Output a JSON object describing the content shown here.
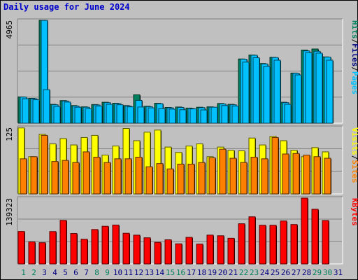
{
  "title": "Daily usage for June 2024",
  "colors": {
    "hits": "#00805c",
    "files": "#00c0ff",
    "pages": "#00c0ff",
    "visits": "#ffff00",
    "sites": "#ff8000",
    "kbytes": "#ff0000",
    "weekend_day": "#00805c",
    "weekday": "#000080",
    "panel": "#c0c0c0",
    "grid": "#808080"
  },
  "chart_data": [
    {
      "type": "bar",
      "panel": "hits-files-pages",
      "categories": [
        "1",
        "2",
        "3",
        "4",
        "5",
        "6",
        "7",
        "8",
        "9",
        "10",
        "11",
        "12",
        "13",
        "14",
        "15",
        "16",
        "17",
        "18",
        "19",
        "20",
        "21",
        "22",
        "23",
        "24",
        "25",
        "26",
        "27",
        "28",
        "29",
        "30",
        "31"
      ],
      "ymax_label": "4965",
      "ymax": 4965,
      "right_label": [
        "Pages",
        "/",
        "Files",
        "/",
        "Hits"
      ],
      "series": [
        {
          "name": "Hits",
          "values": [
            1270,
            1200,
            4965,
            910,
            1090,
            850,
            790,
            900,
            1010,
            960,
            850,
            1370,
            820,
            960,
            760,
            780,
            730,
            770,
            790,
            950,
            910,
            3100,
            3290,
            2880,
            3180,
            1010,
            2420,
            3530,
            3580,
            3200,
            0
          ]
        },
        {
          "name": "Files",
          "values": [
            1260,
            1180,
            4960,
            890,
            1070,
            830,
            770,
            880,
            990,
            940,
            830,
            1100,
            800,
            940,
            740,
            760,
            710,
            750,
            770,
            930,
            890,
            3090,
            3280,
            2860,
            3170,
            990,
            2410,
            3490,
            3470,
            3190,
            0
          ]
        },
        {
          "name": "Pages",
          "values": [
            1180,
            1130,
            1620,
            810,
            1020,
            770,
            700,
            830,
            910,
            890,
            790,
            780,
            740,
            700,
            680,
            650,
            690,
            640,
            770,
            850,
            830,
            2950,
            3160,
            2740,
            3040,
            910,
            2330,
            3400,
            3380,
            3040,
            0
          ]
        }
      ]
    },
    {
      "type": "bar",
      "panel": "visits-sites",
      "categories": [
        "1",
        "2",
        "3",
        "4",
        "5",
        "6",
        "7",
        "8",
        "9",
        "10",
        "11",
        "12",
        "13",
        "14",
        "15",
        "16",
        "17",
        "18",
        "19",
        "20",
        "21",
        "22",
        "23",
        "24",
        "25",
        "26",
        "27",
        "28",
        "29",
        "30",
        "31"
      ],
      "ymax_label": "125",
      "ymax": 125,
      "right_label": [
        "Sites",
        "/",
        "Visits"
      ],
      "series": [
        {
          "name": "Visits",
          "values": [
            124,
            70,
            112,
            94,
            104,
            92,
            106,
            110,
            73,
            90,
            123,
            100,
            116,
            120,
            88,
            78,
            90,
            94,
            70,
            88,
            82,
            81,
            105,
            92,
            108,
            100,
            82,
            70,
            87,
            79,
            0
          ]
        },
        {
          "name": "Sites",
          "values": [
            66,
            70,
            110,
            61,
            63,
            59,
            79,
            69,
            59,
            66,
            66,
            69,
            51,
            57,
            47,
            56,
            56,
            59,
            68,
            84,
            67,
            59,
            69,
            66,
            106,
            75,
            76,
            73,
            70,
            67,
            0
          ]
        }
      ]
    },
    {
      "type": "bar",
      "panel": "kbytes",
      "categories": [
        "1",
        "2",
        "3",
        "4",
        "5",
        "6",
        "7",
        "8",
        "9",
        "10",
        "11",
        "12",
        "13",
        "14",
        "15",
        "16",
        "17",
        "18",
        "19",
        "20",
        "21",
        "22",
        "23",
        "24",
        "25",
        "26",
        "27",
        "28",
        "29",
        "30",
        "31"
      ],
      "ymax_label": "139323",
      "ymax": 139323,
      "right_label": [
        "KBytes"
      ],
      "series": [
        {
          "name": "KBytes",
          "values": [
            68700,
            46600,
            44900,
            68500,
            92200,
            64400,
            52200,
            72800,
            79700,
            82300,
            64900,
            60900,
            55300,
            45600,
            51000,
            42500,
            56200,
            41900,
            61000,
            59600,
            54300,
            85000,
            99700,
            81800,
            81800,
            90900,
            83400,
            139323,
            115700,
            91900,
            0
          ]
        }
      ]
    }
  ],
  "day_labels": [
    "1",
    "2",
    "3",
    "4",
    "5",
    "6",
    "7",
    "8",
    "9",
    "10",
    "11",
    "12",
    "13",
    "14",
    "15",
    "16",
    "17",
    "18",
    "19",
    "20",
    "21",
    "22",
    "23",
    "24",
    "25",
    "26",
    "27",
    "28",
    "29",
    "30",
    "31"
  ],
  "weekend_days": [
    "1",
    "2",
    "8",
    "9",
    "15",
    "16",
    "22",
    "23",
    "29",
    "30"
  ]
}
